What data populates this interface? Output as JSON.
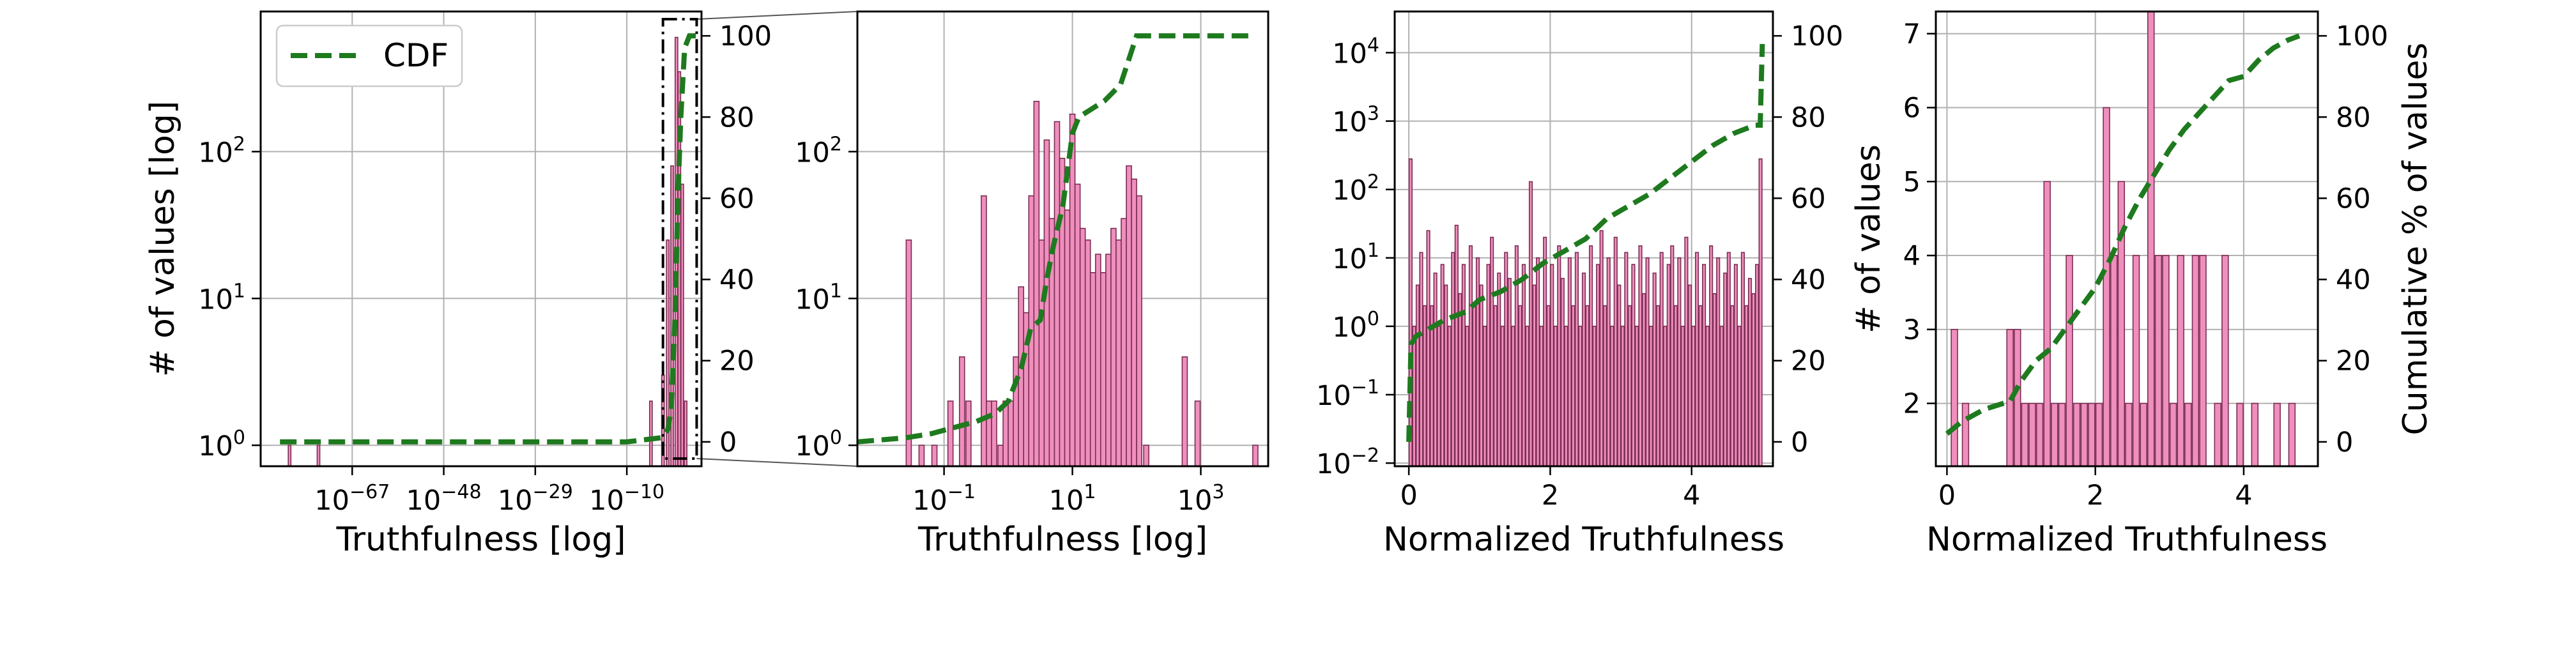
{
  "colors": {
    "bar_fill": "#ef8fbd",
    "bar_edge": "#7a2d52",
    "cdf_line": "#1e7a1e",
    "grid": "#b0b0b0",
    "zoom_box": "#000000"
  },
  "chart_data": [
    {
      "id": "panel-1",
      "type": "bar",
      "xscale": "log10",
      "yscale": "log10",
      "xlim": [
        -86,
        5.5
      ],
      "ylim": [
        0.72,
        900
      ],
      "xlabel": "Truthfulness [log]",
      "ylabel": "# of values [log]",
      "y2label": "",
      "y2lim": [
        -6,
        106
      ],
      "grid": true,
      "legend": {
        "position": "top-left",
        "entries": [
          {
            "label": "CDF",
            "style": "dashed",
            "color": "#1e7a1e"
          }
        ]
      },
      "xticks": [
        {
          "exp": -67,
          "base": "10",
          "sup": "−67"
        },
        {
          "exp": -48,
          "base": "10",
          "sup": "−48"
        },
        {
          "exp": -29,
          "base": "10",
          "sup": "−29"
        },
        {
          "exp": -10,
          "base": "10",
          "sup": "−10"
        }
      ],
      "yticks": [
        {
          "value": 1,
          "base": "10",
          "sup": "0"
        },
        {
          "value": 10,
          "base": "10",
          "sup": "1"
        },
        {
          "value": 100,
          "base": "10",
          "sup": "2"
        }
      ],
      "y2ticks": [
        0,
        20,
        40,
        60,
        80,
        100
      ],
      "bars": [
        {
          "x": -80,
          "value": 1
        },
        {
          "x": -74,
          "value": 1
        },
        {
          "x": -5,
          "value": 2
        },
        {
          "x": -2.5,
          "value": 3
        },
        {
          "x": -1.5,
          "value": 25
        },
        {
          "x": -0.6,
          "value": 80
        },
        {
          "x": 0.3,
          "value": 600
        },
        {
          "x": 0.9,
          "value": 350
        },
        {
          "x": 1.5,
          "value": 60
        },
        {
          "x": 2.2,
          "value": 2
        }
      ],
      "cdf": {
        "x": [
          -82,
          -10,
          -3,
          -1.5,
          -0.8,
          0,
          0.6,
          1.2,
          2,
          3,
          3.6,
          5
        ],
        "y": [
          0,
          0,
          1,
          3,
          8,
          30,
          60,
          80,
          97,
          100,
          100,
          100
        ]
      },
      "zoom_region": {
        "x_range": [
          -2.5,
          4.5
        ],
        "note": "dash-dot box linked to second panel"
      }
    },
    {
      "id": "panel-2",
      "type": "bar",
      "xscale": "log10",
      "yscale": "log10",
      "xlim": [
        -2.35,
        4.05
      ],
      "ylim": [
        0.72,
        900
      ],
      "xlabel": "Truthfulness [log]",
      "ylabel": "",
      "grid": true,
      "xticks": [
        {
          "exp": -1,
          "base": "10",
          "sup": "−1"
        },
        {
          "exp": 1,
          "base": "10",
          "sup": "1"
        },
        {
          "exp": 3,
          "base": "10",
          "sup": "3"
        }
      ],
      "yticks": [
        {
          "value": 1,
          "base": "10",
          "sup": "0"
        },
        {
          "value": 10,
          "base": "10",
          "sup": "1"
        },
        {
          "value": 100,
          "base": "10",
          "sup": "2"
        }
      ],
      "bars": [
        {
          "x": -1.35,
          "value": 1
        },
        {
          "x": -1.55,
          "value": 25
        },
        {
          "x": -1.15,
          "value": 1
        },
        {
          "x": -0.9,
          "value": 2
        },
        {
          "x": -0.72,
          "value": 4
        },
        {
          "x": -0.62,
          "value": 2
        },
        {
          "x": -0.38,
          "value": 50
        },
        {
          "x": -0.3,
          "value": 2
        },
        {
          "x": -0.22,
          "value": 2
        },
        {
          "x": -0.12,
          "value": 1
        },
        {
          "x": -0.04,
          "value": 2
        },
        {
          "x": 0.04,
          "value": 2
        },
        {
          "x": 0.12,
          "value": 4
        },
        {
          "x": 0.2,
          "value": 12
        },
        {
          "x": 0.28,
          "value": 8
        },
        {
          "x": 0.36,
          "value": 50
        },
        {
          "x": 0.44,
          "value": 220
        },
        {
          "x": 0.52,
          "value": 25
        },
        {
          "x": 0.6,
          "value": 120
        },
        {
          "x": 0.68,
          "value": 35
        },
        {
          "x": 0.76,
          "value": 160
        },
        {
          "x": 0.84,
          "value": 90
        },
        {
          "x": 0.92,
          "value": 40
        },
        {
          "x": 1.0,
          "value": 180
        },
        {
          "x": 1.08,
          "value": 60
        },
        {
          "x": 1.16,
          "value": 30
        },
        {
          "x": 1.24,
          "value": 25
        },
        {
          "x": 1.32,
          "value": 15
        },
        {
          "x": 1.4,
          "value": 20
        },
        {
          "x": 1.48,
          "value": 15
        },
        {
          "x": 1.56,
          "value": 20
        },
        {
          "x": 1.64,
          "value": 30
        },
        {
          "x": 1.72,
          "value": 25
        },
        {
          "x": 1.8,
          "value": 35
        },
        {
          "x": 1.88,
          "value": 80
        },
        {
          "x": 1.96,
          "value": 65
        },
        {
          "x": 2.04,
          "value": 50
        },
        {
          "x": 2.15,
          "value": 1
        },
        {
          "x": 2.75,
          "value": 4
        },
        {
          "x": 2.95,
          "value": 2
        },
        {
          "x": 3.85,
          "value": 1
        }
      ],
      "cdf": {
        "x": [
          -2.35,
          -1.6,
          -1.2,
          -0.5,
          -0.2,
          0.0,
          0.2,
          0.35,
          0.5,
          0.6,
          0.7,
          0.85,
          1.0,
          1.1,
          1.3,
          1.5,
          1.75,
          2.0,
          2.4,
          3.8
        ],
        "y": [
          0,
          1,
          2,
          5,
          7,
          10,
          18,
          28,
          30,
          40,
          48,
          58,
          76,
          80,
          82,
          84,
          88,
          100,
          100,
          100
        ]
      }
    },
    {
      "id": "panel-3",
      "type": "bar",
      "xscale": "linear",
      "yscale": "log10",
      "xlim": [
        -0.2,
        5.15
      ],
      "ylim": [
        0.009,
        40000
      ],
      "xlabel": "Normalized Truthfulness",
      "ylabel": "",
      "y2lim": [
        -6,
        106
      ],
      "grid": true,
      "xticks": [
        0,
        2,
        4
      ],
      "yticks": [
        {
          "value": 0.01,
          "base": "10",
          "sup": "−2"
        },
        {
          "value": 0.1,
          "base": "10",
          "sup": "−1"
        },
        {
          "value": 1,
          "base": "10",
          "sup": "0"
        },
        {
          "value": 10,
          "base": "10",
          "sup": "1"
        },
        {
          "value": 100,
          "base": "10",
          "sup": "2"
        },
        {
          "value": 1000,
          "base": "10",
          "sup": "3"
        },
        {
          "value": 10000,
          "base": "10",
          "sup": "4"
        }
      ],
      "y2ticks": [
        0,
        20,
        40,
        60,
        80,
        100
      ],
      "bars": [
        {
          "x": 0.025,
          "value": 280
        },
        {
          "x": 0.075,
          "value": 1
        },
        {
          "x": 0.125,
          "value": 4
        },
        {
          "x": 0.175,
          "value": 12
        },
        {
          "x": 0.225,
          "value": 2
        },
        {
          "x": 0.275,
          "value": 25
        },
        {
          "x": 0.325,
          "value": 2
        },
        {
          "x": 0.375,
          "value": 6
        },
        {
          "x": 0.425,
          "value": 1
        },
        {
          "x": 0.475,
          "value": 8
        },
        {
          "x": 0.525,
          "value": 4
        },
        {
          "x": 0.575,
          "value": 1
        },
        {
          "x": 0.625,
          "value": 12
        },
        {
          "x": 0.675,
          "value": 30
        },
        {
          "x": 0.725,
          "value": 3
        },
        {
          "x": 0.775,
          "value": 8
        },
        {
          "x": 0.825,
          "value": 1
        },
        {
          "x": 0.875,
          "value": 15
        },
        {
          "x": 0.925,
          "value": 2
        },
        {
          "x": 0.975,
          "value": 10
        },
        {
          "x": 1.025,
          "value": 4
        },
        {
          "x": 1.075,
          "value": 1
        },
        {
          "x": 1.125,
          "value": 8
        },
        {
          "x": 1.175,
          "value": 20
        },
        {
          "x": 1.225,
          "value": 2
        },
        {
          "x": 1.275,
          "value": 6
        },
        {
          "x": 1.325,
          "value": 1
        },
        {
          "x": 1.375,
          "value": 12
        },
        {
          "x": 1.425,
          "value": 5
        },
        {
          "x": 1.475,
          "value": 1
        },
        {
          "x": 1.525,
          "value": 15
        },
        {
          "x": 1.575,
          "value": 2
        },
        {
          "x": 1.625,
          "value": 8
        },
        {
          "x": 1.675,
          "value": 1
        },
        {
          "x": 1.725,
          "value": 130
        },
        {
          "x": 1.775,
          "value": 4
        },
        {
          "x": 1.825,
          "value": 10
        },
        {
          "x": 1.875,
          "value": 1
        },
        {
          "x": 1.925,
          "value": 20
        },
        {
          "x": 1.975,
          "value": 2
        },
        {
          "x": 2.025,
          "value": 8
        },
        {
          "x": 2.075,
          "value": 1
        },
        {
          "x": 2.125,
          "value": 15
        },
        {
          "x": 2.175,
          "value": 5
        },
        {
          "x": 2.225,
          "value": 1
        },
        {
          "x": 2.275,
          "value": 10
        },
        {
          "x": 2.325,
          "value": 2
        },
        {
          "x": 2.375,
          "value": 12
        },
        {
          "x": 2.425,
          "value": 1
        },
        {
          "x": 2.475,
          "value": 6
        },
        {
          "x": 2.525,
          "value": 2
        },
        {
          "x": 2.575,
          "value": 15
        },
        {
          "x": 2.625,
          "value": 1
        },
        {
          "x": 2.675,
          "value": 8
        },
        {
          "x": 2.725,
          "value": 25
        },
        {
          "x": 2.775,
          "value": 2
        },
        {
          "x": 2.825,
          "value": 10
        },
        {
          "x": 2.875,
          "value": 1
        },
        {
          "x": 2.925,
          "value": 20
        },
        {
          "x": 2.975,
          "value": 4
        },
        {
          "x": 3.025,
          "value": 1
        },
        {
          "x": 3.075,
          "value": 12
        },
        {
          "x": 3.125,
          "value": 2
        },
        {
          "x": 3.175,
          "value": 8
        },
        {
          "x": 3.225,
          "value": 1
        },
        {
          "x": 3.275,
          "value": 15
        },
        {
          "x": 3.325,
          "value": 3
        },
        {
          "x": 3.375,
          "value": 10
        },
        {
          "x": 3.425,
          "value": 1
        },
        {
          "x": 3.475,
          "value": 6
        },
        {
          "x": 3.525,
          "value": 2
        },
        {
          "x": 3.575,
          "value": 12
        },
        {
          "x": 3.625,
          "value": 1
        },
        {
          "x": 3.675,
          "value": 8
        },
        {
          "x": 3.725,
          "value": 15
        },
        {
          "x": 3.775,
          "value": 2
        },
        {
          "x": 3.825,
          "value": 10
        },
        {
          "x": 3.875,
          "value": 1
        },
        {
          "x": 3.925,
          "value": 20
        },
        {
          "x": 3.975,
          "value": 4
        },
        {
          "x": 4.025,
          "value": 1
        },
        {
          "x": 4.075,
          "value": 12
        },
        {
          "x": 4.125,
          "value": 2
        },
        {
          "x": 4.175,
          "value": 8
        },
        {
          "x": 4.225,
          "value": 1
        },
        {
          "x": 4.275,
          "value": 15
        },
        {
          "x": 4.325,
          "value": 3
        },
        {
          "x": 4.375,
          "value": 10
        },
        {
          "x": 4.425,
          "value": 1
        },
        {
          "x": 4.475,
          "value": 6
        },
        {
          "x": 4.525,
          "value": 12
        },
        {
          "x": 4.575,
          "value": 2
        },
        {
          "x": 4.625,
          "value": 8
        },
        {
          "x": 4.675,
          "value": 1
        },
        {
          "x": 4.725,
          "value": 12
        },
        {
          "x": 4.775,
          "value": 2
        },
        {
          "x": 4.825,
          "value": 5
        },
        {
          "x": 4.875,
          "value": 3
        },
        {
          "x": 4.925,
          "value": 8
        },
        {
          "x": 4.975,
          "value": 280
        }
      ],
      "cdf": {
        "x": [
          0.0,
          0.03,
          0.1,
          0.3,
          0.5,
          0.8,
          1.0,
          1.3,
          1.6,
          1.9,
          2.2,
          2.5,
          2.8,
          3.1,
          3.4,
          3.7,
          4.0,
          4.3,
          4.6,
          4.9,
          4.97,
          5.0
        ],
        "y": [
          0,
          24,
          26,
          28,
          30,
          32,
          35,
          37,
          40,
          44,
          47,
          50,
          55,
          58,
          61,
          65,
          69,
          73,
          76,
          78,
          78,
          98
        ]
      }
    },
    {
      "id": "panel-4",
      "type": "bar",
      "xscale": "linear",
      "yscale": "linear",
      "xlim": [
        -0.15,
        5.0
      ],
      "ylim": [
        1.15,
        7.3
      ],
      "xlabel": "Normalized Truthfulness",
      "ylabel": "# of values",
      "y2label": "Cumulative % of values",
      "y2lim": [
        -6,
        106
      ],
      "grid": true,
      "xticks": [
        0,
        2,
        4
      ],
      "yticks": [
        2,
        3,
        4,
        5,
        6,
        7
      ],
      "y2ticks": [
        0,
        20,
        40,
        60,
        80,
        100
      ],
      "bars": [
        {
          "x": 0.1,
          "value": 3
        },
        {
          "x": 0.25,
          "value": 2
        },
        {
          "x": 0.85,
          "value": 3
        },
        {
          "x": 0.95,
          "value": 3
        },
        {
          "x": 1.05,
          "value": 2
        },
        {
          "x": 1.15,
          "value": 2
        },
        {
          "x": 1.25,
          "value": 2
        },
        {
          "x": 1.35,
          "value": 5
        },
        {
          "x": 1.45,
          "value": 2
        },
        {
          "x": 1.55,
          "value": 2
        },
        {
          "x": 1.65,
          "value": 4
        },
        {
          "x": 1.75,
          "value": 2
        },
        {
          "x": 1.85,
          "value": 2
        },
        {
          "x": 1.95,
          "value": 2
        },
        {
          "x": 2.05,
          "value": 2
        },
        {
          "x": 2.15,
          "value": 6
        },
        {
          "x": 2.25,
          "value": 4
        },
        {
          "x": 2.35,
          "value": 5
        },
        {
          "x": 2.45,
          "value": 2
        },
        {
          "x": 2.55,
          "value": 4
        },
        {
          "x": 2.65,
          "value": 2
        },
        {
          "x": 2.75,
          "value": 7.4
        },
        {
          "x": 2.85,
          "value": 4
        },
        {
          "x": 2.95,
          "value": 4
        },
        {
          "x": 3.05,
          "value": 2
        },
        {
          "x": 3.15,
          "value": 4
        },
        {
          "x": 3.25,
          "value": 2
        },
        {
          "x": 3.35,
          "value": 4
        },
        {
          "x": 3.45,
          "value": 4
        },
        {
          "x": 3.65,
          "value": 2
        },
        {
          "x": 3.75,
          "value": 4
        },
        {
          "x": 3.95,
          "value": 2
        },
        {
          "x": 4.15,
          "value": 2
        },
        {
          "x": 4.45,
          "value": 2
        },
        {
          "x": 4.65,
          "value": 2
        }
      ],
      "cdf": {
        "x": [
          0.0,
          0.2,
          0.5,
          0.85,
          1.0,
          1.2,
          1.4,
          1.6,
          1.8,
          2.0,
          2.2,
          2.4,
          2.6,
          2.8,
          3.0,
          3.2,
          3.4,
          3.6,
          3.8,
          4.0,
          4.2,
          4.4,
          4.6,
          4.75
        ],
        "y": [
          2,
          5,
          8,
          10,
          15,
          20,
          23,
          28,
          33,
          38,
          45,
          53,
          60,
          66,
          72,
          77,
          81,
          85,
          89,
          90,
          94,
          97,
          99,
          100
        ]
      }
    }
  ]
}
